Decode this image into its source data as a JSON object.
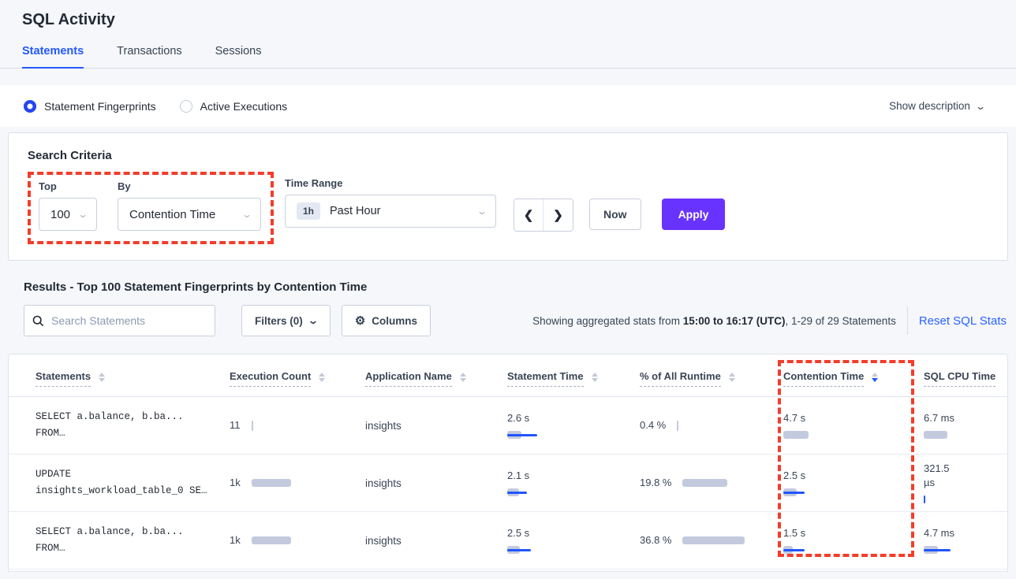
{
  "colors": {
    "accent_blue": "#2357ff",
    "link_blue": "#2962ff",
    "apply_purple": "#6933ff",
    "highlight_red": "#f23d2a",
    "bar_gray": "#c3cade",
    "bar_blue": "#2155ff"
  },
  "page": {
    "title": "SQL Activity"
  },
  "tabs": [
    {
      "label": "Statements",
      "active": true
    },
    {
      "label": "Transactions",
      "active": false
    },
    {
      "label": "Sessions",
      "active": false
    }
  ],
  "mode_bar": {
    "options": [
      {
        "label": "Statement Fingerprints",
        "selected": true
      },
      {
        "label": "Active Executions",
        "selected": false
      }
    ],
    "show_description_label": "Show description"
  },
  "search_criteria": {
    "title": "Search Criteria",
    "top_label": "Top",
    "top_value": "100",
    "by_label": "By",
    "by_value": "Contention Time",
    "time_range_label": "Time Range",
    "time_badge": "1h",
    "time_value": "Past Hour",
    "prev_arrow": "❮",
    "next_arrow": "❯",
    "now_label": "Now",
    "apply_label": "Apply"
  },
  "results": {
    "heading": "Results - Top 100 Statement Fingerprints by Contention Time",
    "search_placeholder": "Search Statements",
    "filters_label": "Filters (0)",
    "columns_label": "Columns",
    "stats_prefix": "Showing aggregated stats from ",
    "stats_range": "15:00 to 16:17 (UTC)",
    "stats_suffix": ", 1-29 of 29 Statements",
    "reset_label": "Reset SQL Stats"
  },
  "table": {
    "headers": [
      "Statements",
      "Execution Count",
      "Application Name",
      "Statement Time",
      "% of All Runtime",
      "Contention Time",
      "SQL CPU Time"
    ],
    "sorted_column": "Contention Time",
    "sort_direction": "desc",
    "rows": [
      {
        "statement_line1": "SELECT a.balance, b.ba...",
        "statement_line2": "FROM…",
        "execution_count": "11",
        "application": "insights",
        "statement_time": "2.6 s",
        "runtime_pct": "0.4 %",
        "contention_time": "4.7 s",
        "sql_cpu": "6.7 ms",
        "bars": {
          "execution": {
            "gray": 2,
            "blue": 0,
            "tick": true
          },
          "statement_time": {
            "gray": 18,
            "blue": 38
          },
          "runtime_pct": {
            "gray": 2,
            "blue": 0,
            "tick": true
          },
          "contention": {
            "gray": 32,
            "blue": 0
          },
          "sql_cpu": {
            "gray": 30,
            "blue": 0
          }
        }
      },
      {
        "statement_line1": "UPDATE",
        "statement_line2": "insights_workload_table_0 SE…",
        "execution_count": "1k",
        "application": "insights",
        "statement_time": "2.1 s",
        "runtime_pct": "19.8 %",
        "contention_time": "2.5 s",
        "sql_cpu": "321.5 µs",
        "bars": {
          "execution": {
            "gray": 50,
            "blue": 0
          },
          "statement_time": {
            "gray": 15,
            "blue": 25
          },
          "runtime_pct": {
            "gray": 57,
            "blue": 0
          },
          "contention": {
            "gray": 17,
            "blue": 27
          },
          "sql_cpu": {
            "gray": 0,
            "blue": 2,
            "tick": true
          }
        }
      },
      {
        "statement_line1": "SELECT a.balance, b.ba...",
        "statement_line2": "FROM…",
        "execution_count": "1k",
        "application": "insights",
        "statement_time": "2.5 s",
        "runtime_pct": "36.8 %",
        "contention_time": "1.5 s",
        "sql_cpu": "4.7 ms",
        "bars": {
          "execution": {
            "gray": 50,
            "blue": 0
          },
          "statement_time": {
            "gray": 16,
            "blue": 30
          },
          "runtime_pct": {
            "gray": 79,
            "blue": 0
          },
          "contention": {
            "gray": 12,
            "blue": 27
          },
          "sql_cpu": {
            "gray": 18,
            "blue": 34
          }
        }
      }
    ]
  }
}
